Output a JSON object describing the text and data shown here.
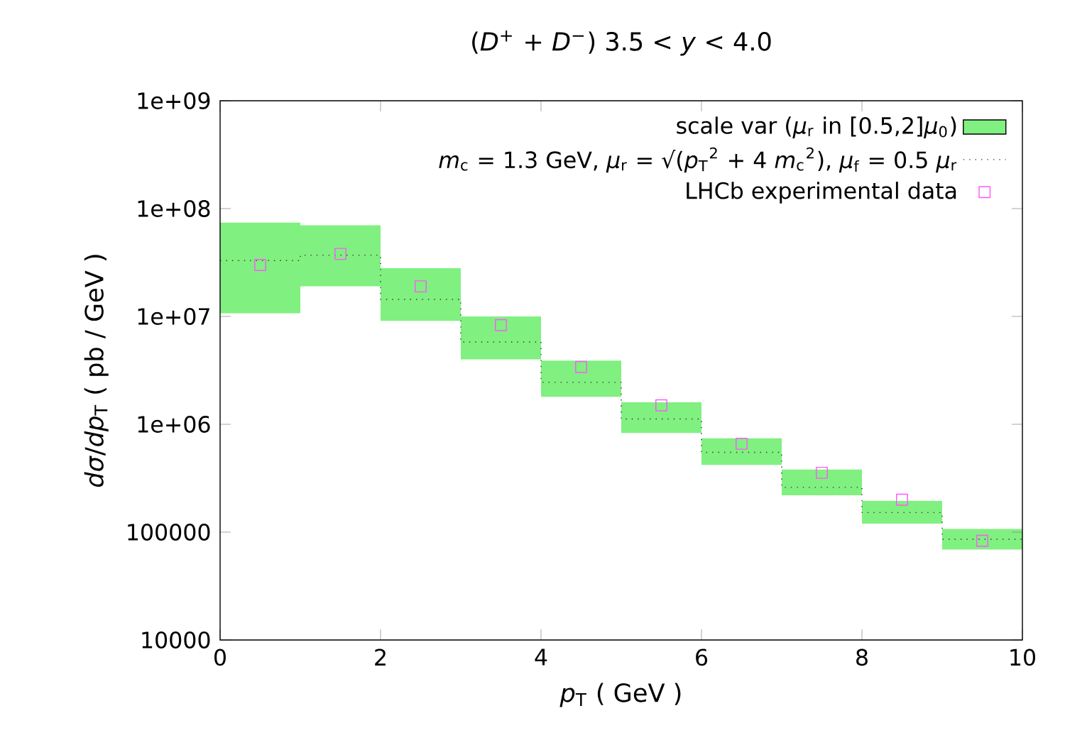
{
  "chart_data": {
    "type": "bar",
    "title": "(*D*$^{+}$ + *D*$^{−}$)    3.5 < *y* < 4.0",
    "xlabel": "*p*$_{T}$ ( GeV )",
    "ylabel": "*dσ*/*dp*$_{T}$ ( pb / GeV )",
    "log": "y",
    "xlim": [
      0,
      10
    ],
    "xticks": [
      0,
      2,
      4,
      6,
      8,
      10
    ],
    "ylim": [
      10000,
      1000000000
    ],
    "yticks": [
      10000,
      100000,
      {
        "value": 1000000,
        "label": "1e+06"
      },
      {
        "value": 10000000,
        "label": "1e+07"
      },
      {
        "value": 100000000,
        "label": "1e+08"
      },
      {
        "value": 1000000000,
        "label": "1e+09"
      }
    ],
    "legend": "top right",
    "grid": false,
    "series": [
      {
        "name": "scale var (*μ*$_{r}$ in [0.5,2]*μ*$_{0}$)",
        "color": "#80f080",
        "x": [
          0.5,
          1.5,
          2.5,
          3.5,
          4.5,
          5.5,
          6.5,
          7.5,
          8.5,
          9.5
        ],
        "base": [
          10700000,
          19000000,
          9100000,
          4000000,
          1800000,
          830000,
          420000,
          220000,
          120000,
          69000
        ],
        "values": [
          63300000,
          51000000,
          18900000,
          6000000,
          2100000,
          770000,
          320000,
          160000,
          75000,
          38000
        ]
      },
      {
        "type": "step",
        "name": "*m*$_{c}$ = 1.3 GeV, *μ*$_{r}$ = √(*p*$_{T}$$^{2}$ + 4 *m*$_{c}$$^{2}$), *μ*$_{f}$ = 0.5 *μ*$_{r}$",
        "color": "#333333",
        "line_style": "dotted",
        "x": [
          0,
          1,
          2,
          3,
          4,
          5,
          6,
          7,
          8,
          9,
          10
        ],
        "values": [
          33000000,
          37000000,
          14400000,
          5800000,
          2450000,
          1120000,
          550000,
          260000,
          152000,
          86000,
          86000
        ]
      },
      {
        "type": "scatter",
        "name": "LHCb experimental data",
        "color": "#ff55ff",
        "marker": "square",
        "x": [
          0.5,
          1.5,
          2.5,
          3.5,
          4.5,
          5.5,
          6.5,
          7.5,
          8.5,
          9.5
        ],
        "values": [
          30000000,
          38000000,
          19000000,
          8300000,
          3400000,
          1500000,
          660000,
          355000,
          200000,
          83000
        ]
      }
    ]
  }
}
